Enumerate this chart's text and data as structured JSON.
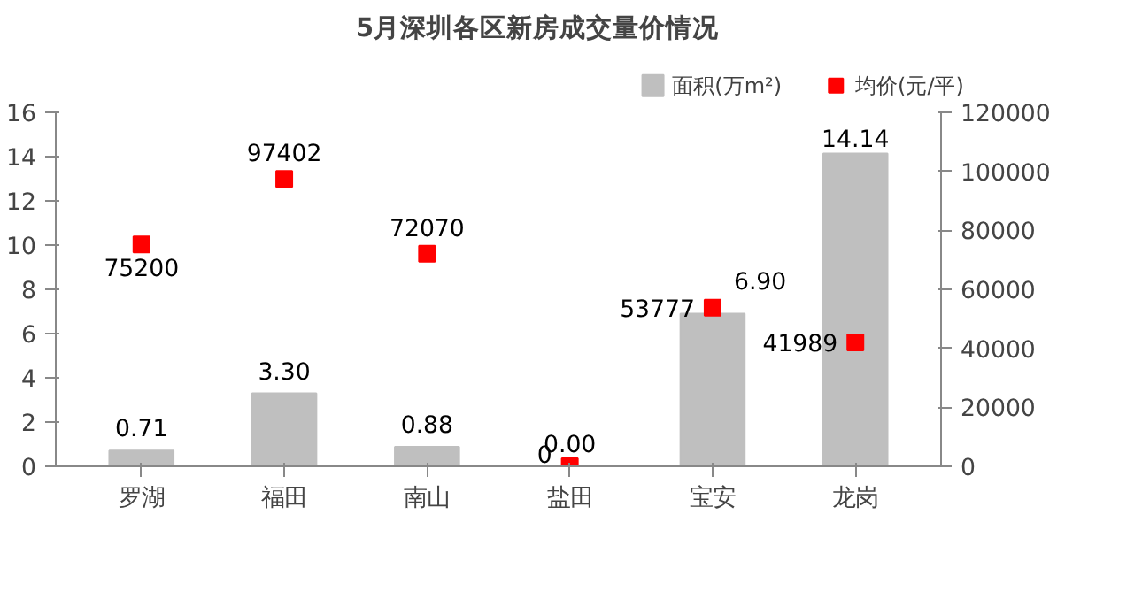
{
  "chart_data": {
    "type": "bar",
    "title": "5月深圳各区新房成交量价情况",
    "categories": [
      "罗湖",
      "福田",
      "南山",
      "盐田",
      "宝安",
      "龙岗"
    ],
    "series": [
      {
        "name": "面积(万m²)",
        "color": "#bfbfbf",
        "values": [
          0.71,
          3.3,
          0.88,
          0.0,
          6.9,
          14.14
        ],
        "value_labels": [
          "0.71",
          "3.30",
          "0.88",
          "0.00",
          "6.90",
          "14.14"
        ]
      },
      {
        "name": "均价(元/平)",
        "type": "scatter",
        "axis": "y2",
        "marker": "square",
        "color": "#ff0000",
        "values": [
          75200,
          97402,
          72070,
          0,
          53777,
          41989
        ],
        "value_labels": [
          "75200",
          "97402",
          "72070",
          "0",
          "53777",
          "41989"
        ]
      }
    ],
    "ylim": [
      0,
      16
    ],
    "yticks": [
      0,
      2,
      4,
      6,
      8,
      10,
      12,
      14,
      16
    ],
    "y2lim": [
      0,
      120000
    ],
    "y2ticks": [
      0,
      20000,
      40000,
      60000,
      80000,
      100000,
      120000
    ],
    "grid": false,
    "legend": "top right"
  }
}
